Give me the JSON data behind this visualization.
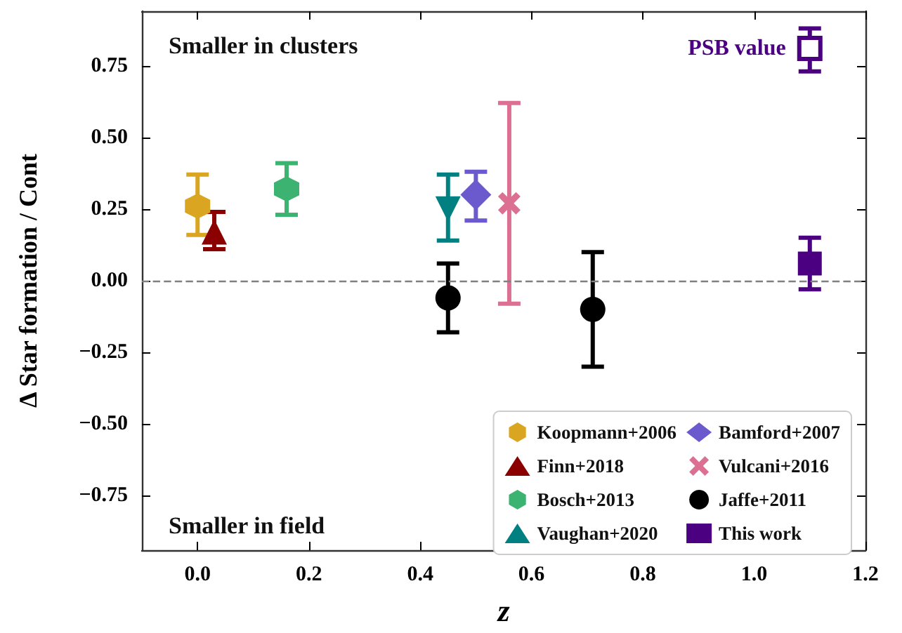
{
  "chart_data": {
    "type": "scatter",
    "xlabel": "z",
    "ylabel": "Δ Star formation / Cont",
    "xlim": [
      -0.1,
      1.2
    ],
    "xticks": [
      {
        "value": 0,
        "label": "0.0"
      },
      {
        "value": 0.2,
        "label": "0.2"
      },
      {
        "value": 0.4,
        "label": "0.4"
      },
      {
        "value": 0.6,
        "label": "0.6"
      },
      {
        "value": 0.8,
        "label": "0.8"
      },
      {
        "value": 1,
        "label": "1.0"
      },
      {
        "value": 1.2,
        "label": "1.2"
      }
    ],
    "ylim": [
      -0.94,
      0.94
    ],
    "yticks": [
      {
        "value": -0.75,
        "label": "−0.75"
      },
      {
        "value": -0.5,
        "label": "−0.50"
      },
      {
        "value": -0.25,
        "label": "−0.25"
      },
      {
        "value": 0,
        "label": "0.00"
      },
      {
        "value": 0.25,
        "label": "0.25"
      },
      {
        "value": 0.5,
        "label": "0.50"
      },
      {
        "value": 0.75,
        "label": "0.75"
      }
    ],
    "grid": false,
    "legend": "bottom right",
    "ref_lines": [
      {
        "axis": "y",
        "value": 0,
        "color": "#808080",
        "line_style": "dashed"
      }
    ],
    "annotations": [
      "Smaller in clusters",
      "Smaller in field"
    ],
    "series": [
      {
        "name": "Koopmann+2006",
        "color": "#daa520",
        "x": [
          0.0
        ],
        "values": [
          0.26
        ],
        "errors": [
          [
            0.16,
            0.37
          ]
        ]
      },
      {
        "name": "Finn+2018",
        "color": "#8b0000",
        "marker": "triangle",
        "x": [
          0.03
        ],
        "values": [
          0.17
        ],
        "errors": [
          [
            0.11,
            0.24
          ]
        ]
      },
      {
        "name": "Bosch+2013",
        "color": "#3cb371",
        "x": [
          0.16
        ],
        "values": [
          0.32
        ],
        "errors": [
          [
            0.23,
            0.41
          ]
        ]
      },
      {
        "name": "Vaughan+2020",
        "color": "#008080",
        "marker": "triangle_down",
        "x": [
          0.45
        ],
        "values": [
          0.25
        ],
        "errors": [
          [
            0.14,
            0.37
          ]
        ]
      },
      {
        "name": "Bamford+2007",
        "color": "#6a5acd",
        "marker": "diamond",
        "x": [
          0.5
        ],
        "values": [
          0.3
        ],
        "errors": [
          [
            0.21,
            0.38
          ]
        ]
      },
      {
        "name": "Vulcani+2016",
        "color": "#db7093",
        "marker": "cross",
        "x": [
          0.56
        ],
        "values": [
          0.27
        ],
        "errors": [
          [
            -0.08,
            0.62
          ]
        ]
      },
      {
        "name": "Jaffe+2011",
        "color": "#000000",
        "marker": "circle",
        "x": [
          0.45,
          0.71
        ],
        "values": [
          -0.06,
          -0.1
        ],
        "errors": [
          [
            -0.18,
            0.06
          ],
          [
            -0.3,
            0.1
          ]
        ]
      },
      {
        "name": "This work",
        "color": "#4b0082",
        "marker": "square",
        "x": [
          1.1
        ],
        "values": [
          0.06
        ],
        "errors": [
          [
            -0.03,
            0.15
          ]
        ]
      },
      {
        "name": "PSB value",
        "color": "#4b0082",
        "marker": "square_open",
        "x": [
          1.1
        ],
        "values": [
          0.81
        ],
        "errors": [
          [
            0.73,
            0.88
          ]
        ]
      }
    ]
  }
}
